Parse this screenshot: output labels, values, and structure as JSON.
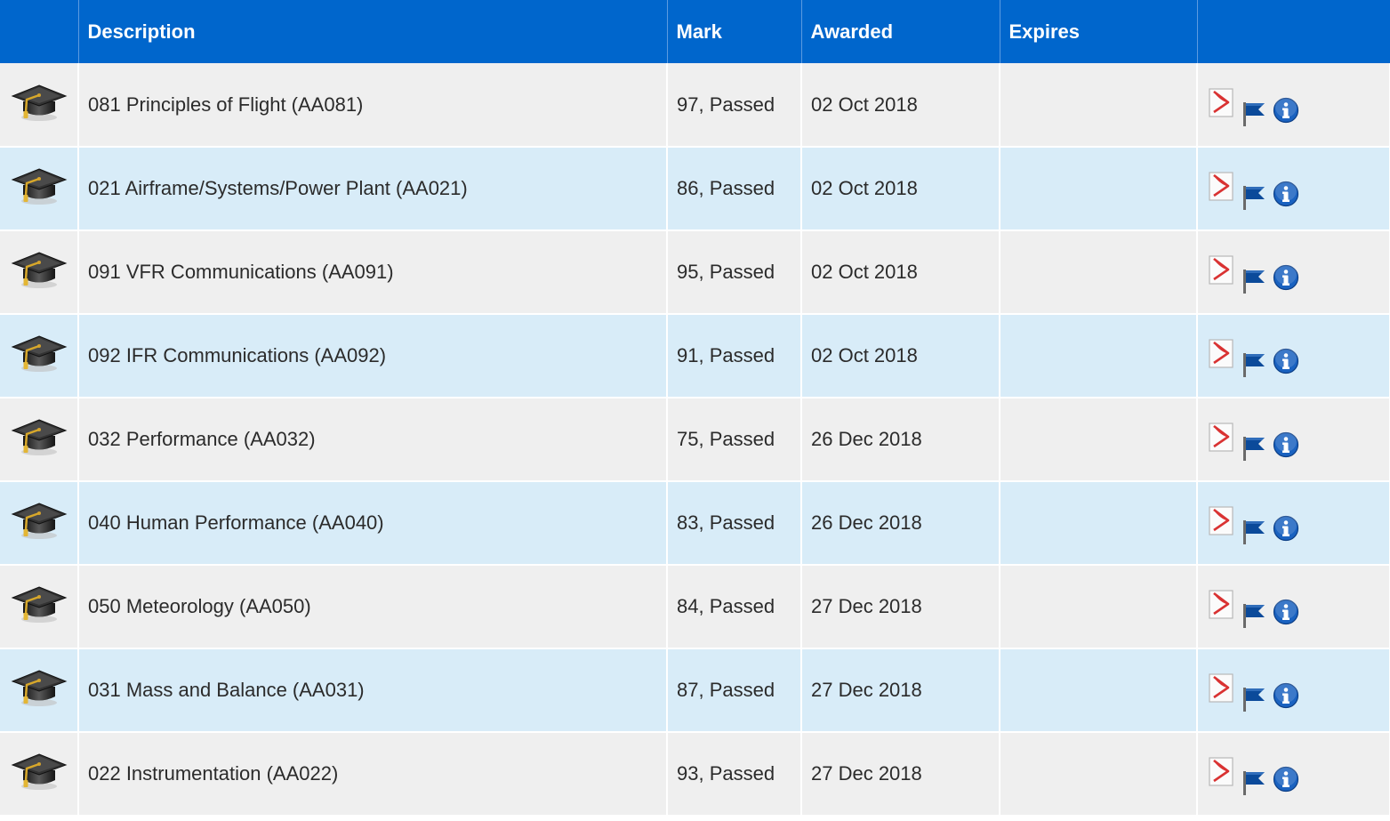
{
  "table": {
    "headers": {
      "icon": "",
      "description": "Description",
      "mark": "Mark",
      "awarded": "Awarded",
      "expires": "Expires",
      "actions": ""
    },
    "rows": [
      {
        "description": "081 Principles of Flight (AA081)",
        "mark": "97, Passed",
        "awarded": "02 Oct 2018",
        "expires": ""
      },
      {
        "description": "021 Airframe/Systems/Power Plant (AA021)",
        "mark": "86, Passed",
        "awarded": "02 Oct 2018",
        "expires": ""
      },
      {
        "description": "091 VFR Communications (AA091)",
        "mark": "95, Passed",
        "awarded": "02 Oct 2018",
        "expires": ""
      },
      {
        "description": "092 IFR Communications (AA092)",
        "mark": "91, Passed",
        "awarded": "02 Oct 2018",
        "expires": ""
      },
      {
        "description": "032 Performance (AA032)",
        "mark": "75, Passed",
        "awarded": "26 Dec 2018",
        "expires": ""
      },
      {
        "description": "040 Human Performance (AA040)",
        "mark": "83, Passed",
        "awarded": "26 Dec 2018",
        "expires": ""
      },
      {
        "description": "050 Meteorology (AA050)",
        "mark": "84, Passed",
        "awarded": "27 Dec 2018",
        "expires": ""
      },
      {
        "description": "031 Mass and Balance (AA031)",
        "mark": "87, Passed",
        "awarded": "27 Dec 2018",
        "expires": ""
      },
      {
        "description": "022 Instrumentation (AA022)",
        "mark": "93, Passed",
        "awarded": "27 Dec 2018",
        "expires": ""
      }
    ]
  },
  "icons": {
    "row_icon": "graduation-cap-icon",
    "actions": [
      "pdf-icon",
      "flag-icon",
      "info-icon"
    ]
  },
  "colors": {
    "header_bg": "#0066cc",
    "row_odd_bg": "#efefef",
    "row_even_bg": "#d8ecf8",
    "flag_blue": "#0b4a9a",
    "info_blue": "#1a62c0",
    "pdf_red": "#d93232"
  }
}
